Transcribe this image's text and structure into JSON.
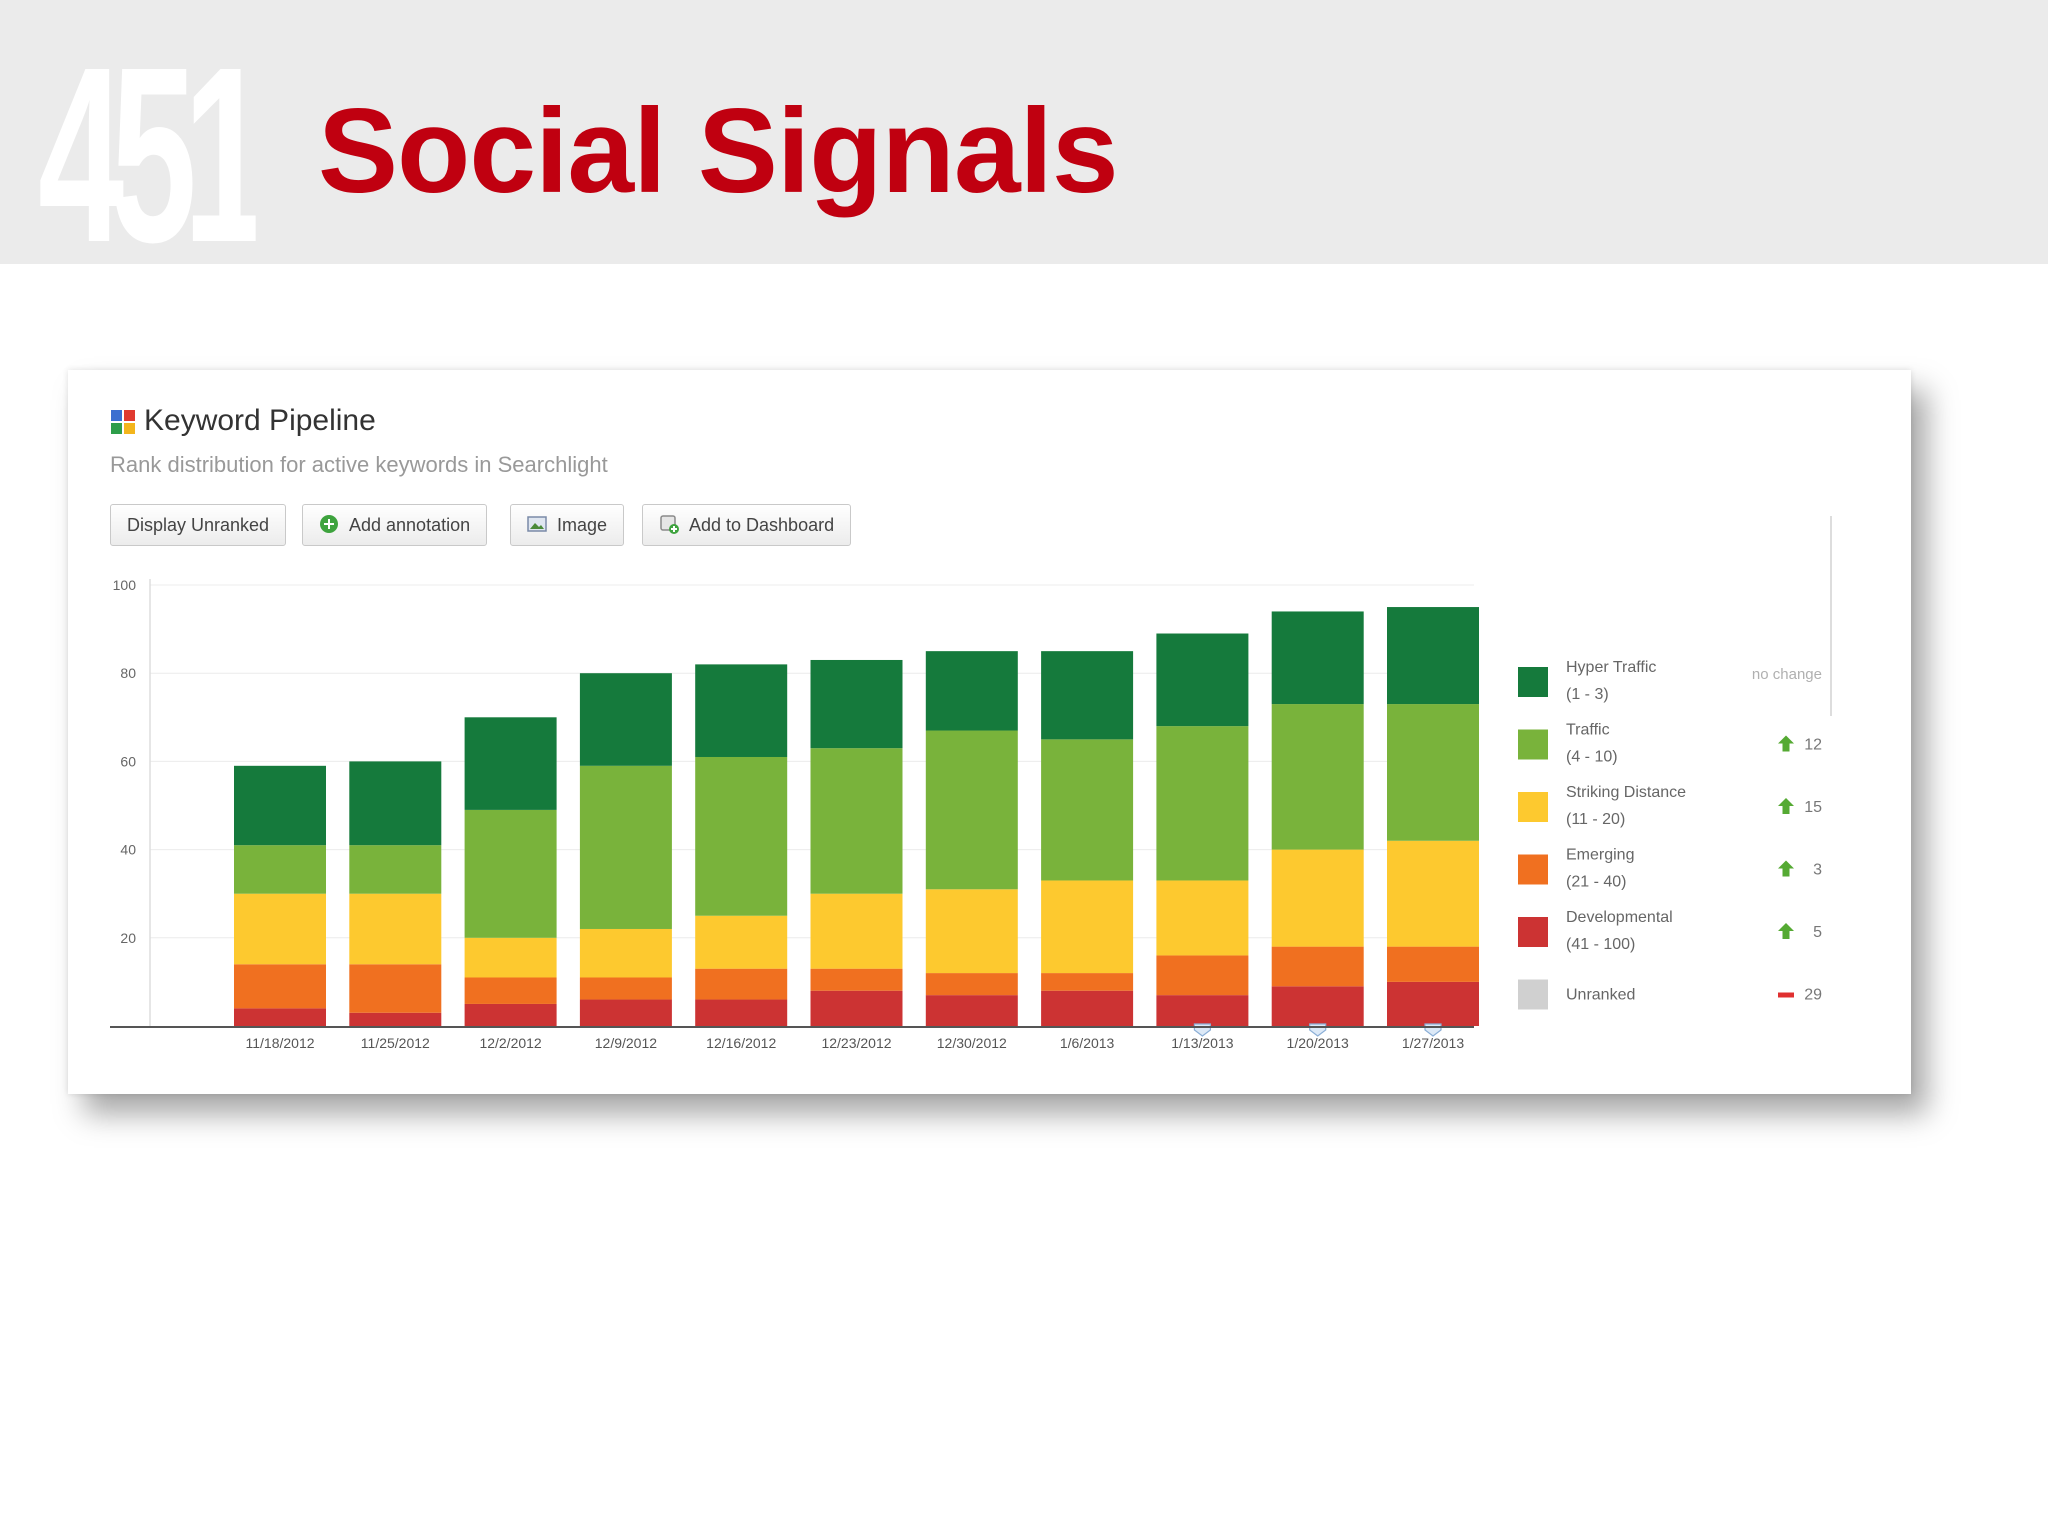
{
  "slide": {
    "number": "451",
    "title": "Social Signals"
  },
  "widget": {
    "title": "Keyword Pipeline",
    "subtitle": "Rank distribution for active keywords in Searchlight",
    "icon": "searchlight-logo-icon",
    "buttons": [
      {
        "label": "Display Unranked",
        "icon": ""
      },
      {
        "label": "Add annotation",
        "icon": "plus-circle-icon"
      },
      {
        "label": "Image",
        "icon": "image-icon"
      },
      {
        "label": "Add to Dashboard",
        "icon": "dashboard-add-icon"
      }
    ]
  },
  "chart_data": {
    "type": "bar",
    "stacked": true,
    "categories": [
      "11/18/2012",
      "11/25/2012",
      "12/2/2012",
      "12/9/2012",
      "12/16/2012",
      "12/23/2012",
      "12/30/2012",
      "1/6/2013",
      "1/13/2013",
      "1/20/2013",
      "1/27/2013"
    ],
    "ylim": [
      0,
      100
    ],
    "yticks": [
      20,
      40,
      60,
      80,
      100
    ],
    "grid": true,
    "legend_position": "right",
    "annotation_markers": [
      "1/13/2013",
      "1/20/2013",
      "1/27/2013"
    ],
    "series": [
      {
        "name": "Developmental",
        "range": "(41 - 100)",
        "color": "#cc3333",
        "values": [
          4,
          3,
          5,
          6,
          6,
          8,
          7,
          8,
          7,
          9,
          10
        ],
        "change": "5",
        "direction": "up"
      },
      {
        "name": "Emerging",
        "range": "(21 - 40)",
        "color": "#f07020",
        "values": [
          10,
          11,
          6,
          5,
          7,
          5,
          5,
          4,
          9,
          9,
          8
        ],
        "change": "3",
        "direction": "up"
      },
      {
        "name": "Striking Distance",
        "range": "(11 - 20)",
        "color": "#fdc92f",
        "values": [
          16,
          16,
          9,
          11,
          12,
          17,
          19,
          21,
          17,
          22,
          24
        ],
        "change": "15",
        "direction": "up"
      },
      {
        "name": "Traffic",
        "range": "(4 - 10)",
        "color": "#79b33b",
        "values": [
          11,
          11,
          29,
          37,
          36,
          33,
          36,
          32,
          35,
          33,
          31
        ],
        "change": "12",
        "direction": "up"
      },
      {
        "name": "Hyper Traffic",
        "range": "(1 - 3)",
        "color": "#157a3c",
        "values": [
          18,
          19,
          21,
          21,
          21,
          20,
          18,
          20,
          21,
          21,
          22
        ],
        "change": "no change",
        "direction": "none"
      }
    ],
    "unranked": {
      "name": "Unranked",
      "color": "#d0d0d0",
      "change": "29",
      "direction": "down"
    }
  },
  "colors": {
    "title_red": "#c00010",
    "header_band": "#ebebeb",
    "up_arrow": "#55aa33",
    "down_bar": "#e03030"
  }
}
